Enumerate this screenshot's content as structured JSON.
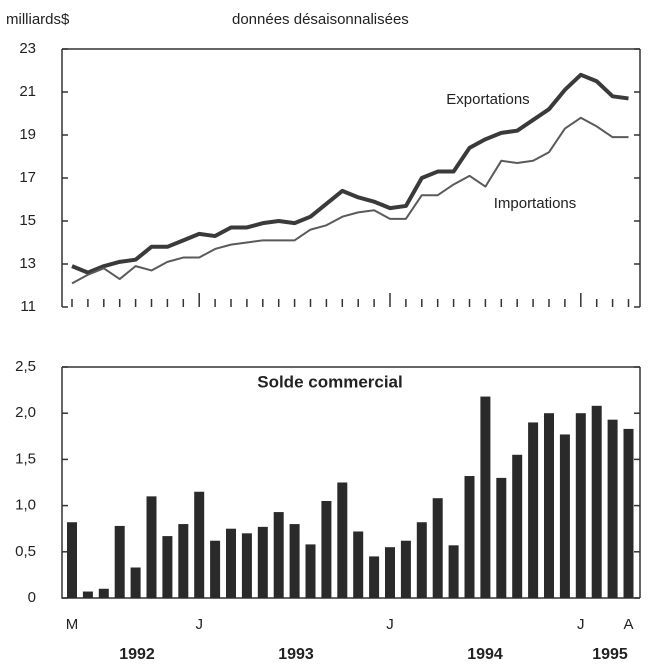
{
  "chart_data": [
    {
      "type": "line",
      "y_label": "milliards$",
      "subtitle": "données désaisonnalisées",
      "ylim": [
        11,
        23
      ],
      "yticks": [
        11,
        13,
        15,
        17,
        19,
        21,
        23
      ],
      "series": [
        {
          "name": "Exportations",
          "color": "#3a3a3a",
          "values": [
            12.9,
            12.6,
            12.9,
            13.1,
            13.2,
            13.8,
            13.8,
            14.1,
            14.4,
            14.3,
            14.7,
            14.7,
            14.9,
            15.0,
            14.9,
            15.2,
            15.8,
            16.4,
            16.1,
            15.9,
            15.6,
            15.7,
            17.0,
            17.3,
            17.3,
            18.4,
            18.8,
            19.1,
            19.2,
            19.7,
            20.2,
            21.1,
            21.8,
            21.5,
            20.8,
            20.7
          ]
        },
        {
          "name": "Importations",
          "color": "#5a5a5a",
          "values": [
            12.1,
            12.5,
            12.8,
            12.3,
            12.9,
            12.7,
            13.1,
            13.3,
            13.3,
            13.7,
            13.9,
            14.0,
            14.1,
            14.1,
            14.1,
            14.6,
            14.8,
            15.2,
            15.4,
            15.5,
            15.1,
            15.1,
            16.2,
            16.2,
            16.7,
            17.1,
            16.6,
            17.8,
            17.7,
            17.8,
            18.2,
            19.3,
            19.8,
            19.4,
            18.9,
            18.9
          ]
        }
      ]
    },
    {
      "type": "bar",
      "title": "Solde commercial",
      "color": "#2a2a2a",
      "categories": [
        "M",
        null,
        null,
        null,
        null,
        null,
        null,
        null,
        "J",
        null,
        null,
        null,
        null,
        null,
        null,
        null,
        null,
        null,
        null,
        null,
        "J",
        null,
        null,
        null,
        null,
        null,
        null,
        null,
        null,
        null,
        null,
        null,
        "J",
        null,
        null,
        "A"
      ],
      "year_labels": [
        "1992",
        "1993",
        "1994",
        "1995"
      ],
      "values": [
        0.82,
        0.07,
        0.1,
        0.78,
        0.33,
        1.1,
        0.67,
        0.8,
        1.15,
        0.62,
        0.75,
        0.7,
        0.77,
        0.93,
        0.8,
        0.58,
        1.05,
        1.25,
        0.72,
        0.45,
        0.55,
        0.62,
        0.82,
        1.08,
        0.57,
        1.32,
        2.18,
        1.3,
        1.55,
        1.9,
        2.0,
        1.77,
        2.0,
        2.08,
        1.93,
        1.83
      ],
      "ylim": [
        0,
        2.5
      ],
      "yticks": [
        0,
        {
          "value": 0.5,
          "label": "0,5"
        },
        {
          "value": 1.0,
          "label": "1,0"
        },
        {
          "value": 1.5,
          "label": "1,5"
        },
        {
          "value": 2.0,
          "label": "2,0"
        },
        {
          "value": 2.5,
          "label": "2,5"
        }
      ]
    }
  ]
}
